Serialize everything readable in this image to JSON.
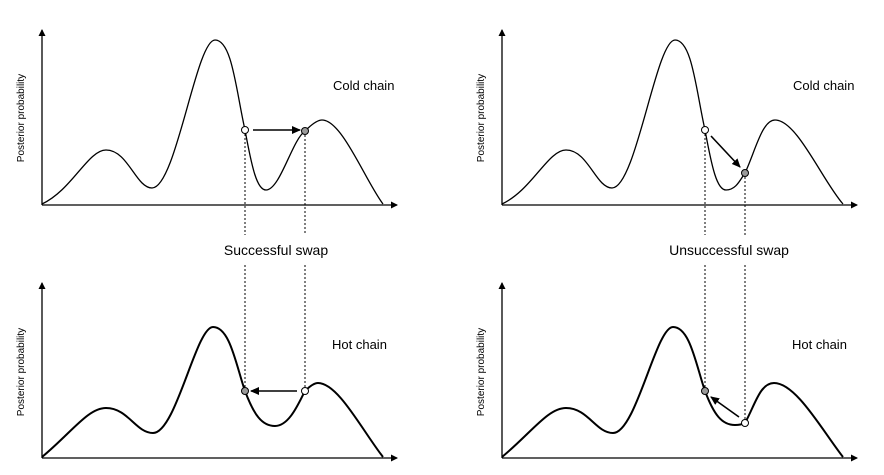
{
  "ylabel": "Posterior probability",
  "colors": {
    "open_state": "#ffffff",
    "filled_state": "#9a9a9a",
    "ink": "#000000"
  },
  "panels": [
    {
      "id": "left",
      "cold_label": "Cold chain",
      "hot_label": "Hot chain",
      "swap_label": "Successful swap",
      "successful": true
    },
    {
      "id": "right",
      "cold_label": "Cold chain",
      "hot_label": "Hot chain",
      "swap_label": "Unsuccessful swap",
      "successful": false
    }
  ]
}
